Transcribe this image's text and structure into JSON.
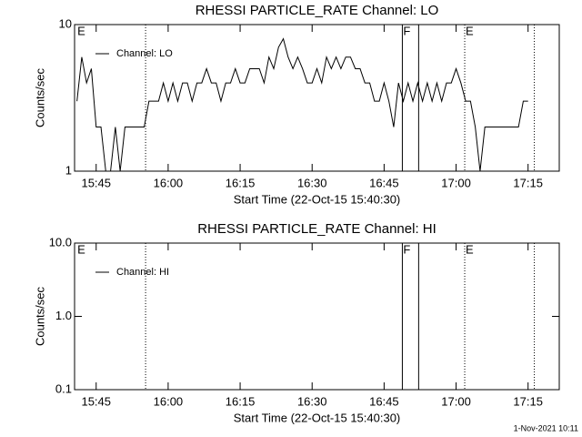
{
  "chart_data": [
    {
      "type": "line",
      "title": "RHESSI PARTICLE_RATE Channel: LO",
      "x_label": "Start Time (22-Oct-15 15:40:30)",
      "y_label": "Counts/sec",
      "log_y": true,
      "legend": "upper left",
      "xlim": [
        0.5,
        101.5
      ],
      "xticks": [
        {
          "value": 5,
          "label": "15:45"
        },
        {
          "value": 20,
          "label": "16:00"
        },
        {
          "value": 35,
          "label": "16:15"
        },
        {
          "value": 50,
          "label": "16:30"
        },
        {
          "value": 65,
          "label": "16:45"
        },
        {
          "value": 80,
          "label": "17:00"
        },
        {
          "value": 95,
          "label": "17:15"
        }
      ],
      "ylim": [
        1,
        10
      ],
      "yticks": [
        1,
        10
      ],
      "x": [
        1,
        2,
        3,
        4,
        5,
        6,
        7,
        8,
        9,
        10,
        11,
        12,
        13,
        14,
        15,
        16,
        17,
        18,
        19,
        20,
        21,
        22,
        23,
        24,
        25,
        26,
        27,
        28,
        29,
        30,
        31,
        32,
        33,
        34,
        35,
        36,
        37,
        38,
        39,
        40,
        41,
        42,
        43,
        44,
        45,
        46,
        47,
        48,
        49,
        50,
        51,
        52,
        53,
        54,
        55,
        56,
        57,
        58,
        59,
        60,
        61,
        62,
        63,
        64,
        65,
        66,
        67,
        68,
        69,
        70,
        71,
        72,
        73,
        74,
        75,
        76,
        77,
        78,
        79,
        80,
        81,
        82,
        83,
        84,
        85,
        86,
        87,
        88,
        89,
        90,
        91,
        92,
        93,
        94,
        95
      ],
      "series": [
        {
          "name": "Channel: LO",
          "color": "#000000",
          "values": [
            3,
            6,
            4,
            5,
            2,
            2,
            1,
            1,
            2,
            1,
            2,
            2,
            2,
            2,
            2,
            3,
            3,
            3,
            4,
            3,
            4,
            3,
            4,
            4,
            3,
            4,
            4,
            5,
            4,
            4,
            3,
            4,
            4,
            5,
            4,
            4,
            5,
            5,
            5,
            4,
            6,
            5,
            7,
            8,
            6,
            5,
            6,
            5,
            4,
            4,
            5,
            4,
            6,
            5,
            6,
            5,
            6,
            6,
            5,
            5,
            4,
            4,
            3,
            3,
            4,
            3,
            2,
            4,
            3,
            4,
            3,
            4,
            3,
            4,
            3,
            4,
            3,
            4,
            4,
            5,
            4,
            3,
            3,
            2,
            1,
            2,
            2,
            2,
            2,
            2,
            2,
            2,
            2,
            3,
            3
          ]
        }
      ],
      "vlines": [
        {
          "x": 15.3,
          "style": "dotted"
        },
        {
          "x": 68.8,
          "style": "solid"
        },
        {
          "x": 72.2,
          "style": "solid"
        },
        {
          "x": 81.8,
          "style": "dotted"
        },
        {
          "x": 96.3,
          "style": "dotted"
        }
      ],
      "markers": [
        {
          "x": 0.9,
          "label": "E"
        },
        {
          "x": 68.8,
          "label": "F"
        },
        {
          "x": 81.8,
          "label": "E"
        }
      ]
    },
    {
      "type": "line",
      "title": "RHESSI PARTICLE_RATE Channel: HI",
      "x_label": "Start Time (22-Oct-15 15:40:30)",
      "y_label": "Counts/sec",
      "log_y": true,
      "legend": "upper left",
      "xlim": [
        0.5,
        101.5
      ],
      "xticks": [
        {
          "value": 5,
          "label": "15:45"
        },
        {
          "value": 20,
          "label": "16:00"
        },
        {
          "value": 35,
          "label": "16:15"
        },
        {
          "value": 50,
          "label": "16:30"
        },
        {
          "value": 65,
          "label": "16:45"
        },
        {
          "value": 80,
          "label": "17:00"
        },
        {
          "value": 95,
          "label": "17:15"
        }
      ],
      "ylim": [
        0.1,
        10
      ],
      "yticks": [
        0.1,
        {
          "value": 1,
          "label": "1.0"
        },
        {
          "value": 10,
          "label": "10.0"
        }
      ],
      "x": [],
      "series": [
        {
          "name": "Channel: HI",
          "color": "#000000",
          "values": []
        }
      ],
      "vlines": [
        {
          "x": 15.3,
          "style": "dotted"
        },
        {
          "x": 68.8,
          "style": "solid"
        },
        {
          "x": 72.2,
          "style": "solid"
        },
        {
          "x": 81.8,
          "style": "dotted"
        },
        {
          "x": 96.3,
          "style": "dotted"
        }
      ],
      "markers": [
        {
          "x": 0.9,
          "label": "E"
        },
        {
          "x": 68.8,
          "label": "F"
        },
        {
          "x": 81.8,
          "label": "E"
        }
      ]
    }
  ],
  "footer": "1-Nov-2021 10:11"
}
